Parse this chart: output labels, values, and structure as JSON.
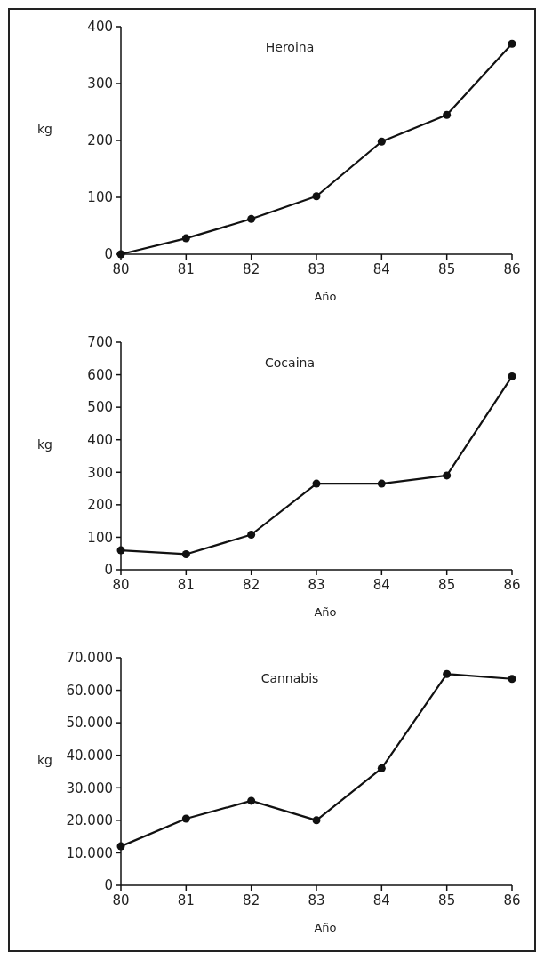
{
  "chart_data": [
    {
      "type": "line",
      "title": "Heroina",
      "xlabel": "Año",
      "ylabel": "kg",
      "x": [
        80,
        81,
        82,
        83,
        84,
        85,
        86
      ],
      "xlim": [
        80,
        86
      ],
      "xticks": [
        80,
        81,
        82,
        83,
        84,
        85,
        86
      ],
      "ylim": [
        0,
        400
      ],
      "yticks": [
        0,
        100,
        200,
        300,
        400
      ],
      "marker": "circle",
      "series": [
        {
          "color": "#111111",
          "values": [
            0,
            28,
            62,
            102,
            198,
            245,
            370
          ]
        }
      ]
    },
    {
      "type": "line",
      "title": "Cocaina",
      "xlabel": "Año",
      "ylabel": "kg",
      "x": [
        80,
        81,
        82,
        83,
        84,
        85,
        86
      ],
      "xlim": [
        80,
        86
      ],
      "xticks": [
        80,
        81,
        82,
        83,
        84,
        85,
        86
      ],
      "ylim": [
        0,
        700
      ],
      "yticks": [
        0,
        100,
        200,
        300,
        400,
        500,
        600,
        700
      ],
      "marker": "circle",
      "series": [
        {
          "color": "#111111",
          "values": [
            60,
            48,
            108,
            265,
            265,
            290,
            595
          ]
        }
      ]
    },
    {
      "type": "line",
      "title": "Cannabis",
      "xlabel": "Año",
      "ylabel": "kg",
      "x": [
        80,
        81,
        82,
        83,
        84,
        85,
        86
      ],
      "xlim": [
        80,
        86
      ],
      "xticks": [
        80,
        81,
        82,
        83,
        84,
        85,
        86
      ],
      "ylim": [
        0,
        70000
      ],
      "yticks": [
        0,
        {
          "value": 10000,
          "label": "10.000"
        },
        {
          "value": 20000,
          "label": "20.000"
        },
        {
          "value": 30000,
          "label": "30.000"
        },
        {
          "value": 40000,
          "label": "40.000"
        },
        {
          "value": 50000,
          "label": "50.000"
        },
        {
          "value": 60000,
          "label": "60.000"
        },
        {
          "value": 70000,
          "label": "70.000"
        }
      ],
      "marker": "circle",
      "series": [
        {
          "color": "#111111",
          "values": [
            12000,
            20500,
            26000,
            20000,
            36000,
            65000,
            63500
          ]
        }
      ]
    }
  ]
}
